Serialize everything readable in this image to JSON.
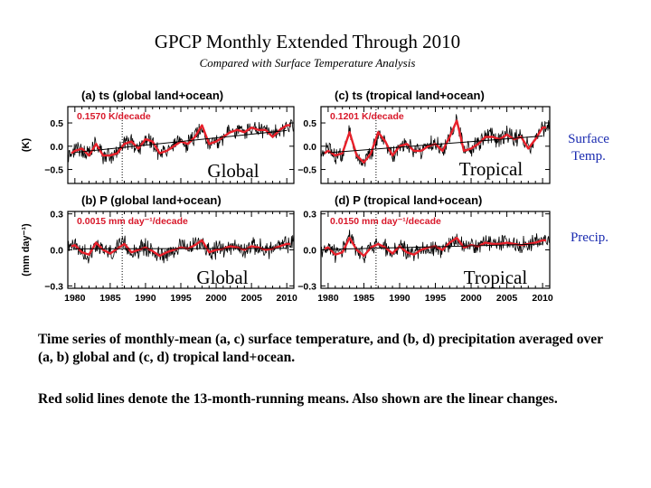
{
  "slide": {
    "title": "GPCP Monthly Extended Through 2010",
    "subtitle": "Compared with Surface Temperature Analysis",
    "side_labels": {
      "temp": "Surface Temp.",
      "precip": "Precip."
    },
    "captions": [
      "Time series of monthly-mean (a, c) surface temperature, and (b, d) precipitation averaged over (a, b) global and (c, d) tropical land+ocean.",
      "Red solid lines denote the 13-month-running means. Also shown are the linear changes."
    ]
  },
  "colors": {
    "trend_text": "#d8182a",
    "smooth_line": "#e8202a",
    "raw_line": "#000000",
    "side_label": "#1a2bb0",
    "dotted_marker": "#000000"
  },
  "chart_data": [
    {
      "id": "a",
      "type": "line",
      "panel_title": "(a)  ts  (global land+ocean)",
      "trend_label": "0.1570  K/decade",
      "overlay_label": "Global",
      "ylabel": "(K)",
      "yticks": [
        "0.5",
        "0.0",
        "−0.5"
      ],
      "ytick_values": [
        0.5,
        0.0,
        -0.5
      ],
      "ylim": [
        -0.8,
        0.85
      ],
      "xlim": [
        1979,
        2011
      ],
      "dotted_marker_year": 1986.7,
      "trend_per_year": 0.0157,
      "series_yearly": {
        "x": [
          1979,
          1980,
          1981,
          1982,
          1983,
          1984,
          1985,
          1986,
          1987,
          1988,
          1989,
          1990,
          1991,
          1992,
          1993,
          1994,
          1995,
          1996,
          1997,
          1998,
          1999,
          2000,
          2001,
          2002,
          2003,
          2004,
          2005,
          2006,
          2007,
          2008,
          2009,
          2010
        ],
        "y": [
          -0.2,
          -0.1,
          -0.05,
          -0.2,
          0.05,
          -0.2,
          -0.2,
          -0.15,
          0.05,
          0.1,
          -0.05,
          0.15,
          0.1,
          -0.15,
          -0.1,
          0.0,
          0.1,
          0.05,
          0.2,
          0.45,
          0.05,
          0.1,
          0.2,
          0.3,
          0.35,
          0.3,
          0.4,
          0.35,
          0.35,
          0.2,
          0.35,
          0.45
        ]
      }
    },
    {
      "id": "b",
      "type": "line",
      "panel_title": "(b)  P  (global land+ocean)",
      "trend_label": "0.0015  mm day⁻¹/decade",
      "overlay_label": "Global",
      "ylabel": "(mm day⁻¹)",
      "yticks": [
        "0.3",
        "0.0",
        "−0.3"
      ],
      "ytick_values": [
        0.3,
        0.0,
        -0.3
      ],
      "ylim": [
        -0.32,
        0.32
      ],
      "xlim": [
        1979,
        2011
      ],
      "dotted_marker_year": 1986.7,
      "trend_per_year": 0.00015,
      "series_yearly": {
        "x": [
          1979,
          1980,
          1981,
          1982,
          1983,
          1984,
          1985,
          1986,
          1987,
          1988,
          1989,
          1990,
          1991,
          1992,
          1993,
          1994,
          1995,
          1996,
          1997,
          1998,
          1999,
          2000,
          2001,
          2002,
          2003,
          2004,
          2005,
          2006,
          2007,
          2008,
          2009,
          2010
        ],
        "y": [
          0.02,
          0.04,
          -0.02,
          -0.04,
          0.06,
          0.0,
          -0.03,
          0.01,
          0.05,
          -0.02,
          0.0,
          0.02,
          -0.01,
          -0.05,
          -0.02,
          0.0,
          0.02,
          0.01,
          0.04,
          0.08,
          -0.02,
          0.0,
          0.01,
          0.03,
          0.02,
          0.0,
          0.03,
          0.02,
          0.0,
          0.01,
          0.03,
          0.05
        ]
      },
      "x_tick_labels": [
        "1980",
        "1985",
        "1990",
        "1995",
        "2000",
        "2005",
        "2010"
      ],
      "x_tick_values": [
        1980,
        1985,
        1990,
        1995,
        2000,
        2005,
        2010
      ]
    },
    {
      "id": "c",
      "type": "line",
      "panel_title": "(c)  ts  (tropical land+ocean)",
      "trend_label": "0.1201  K/decade",
      "overlay_label": "Tropical",
      "ylabel": "",
      "yticks": [
        "0.5",
        "0.0",
        "−0.5"
      ],
      "ytick_values": [
        0.5,
        0.0,
        -0.5
      ],
      "ylim": [
        -0.8,
        0.85
      ],
      "xlim": [
        1979,
        2011
      ],
      "dotted_marker_year": 1986.7,
      "trend_per_year": 0.012,
      "series_yearly": {
        "x": [
          1979,
          1980,
          1981,
          1982,
          1983,
          1984,
          1985,
          1986,
          1987,
          1988,
          1989,
          1990,
          1991,
          1992,
          1993,
          1994,
          1995,
          1996,
          1997,
          1998,
          1999,
          2000,
          2001,
          2002,
          2003,
          2004,
          2005,
          2006,
          2007,
          2008,
          2009,
          2010
        ],
        "y": [
          -0.2,
          -0.1,
          -0.2,
          -0.15,
          0.3,
          -0.2,
          -0.35,
          -0.15,
          0.3,
          0.1,
          -0.2,
          0.0,
          0.05,
          -0.1,
          -0.1,
          0.0,
          0.05,
          -0.1,
          0.2,
          0.55,
          -0.1,
          -0.05,
          0.05,
          0.2,
          0.2,
          0.15,
          0.25,
          0.15,
          0.2,
          -0.05,
          0.15,
          0.4
        ]
      }
    },
    {
      "id": "d",
      "type": "line",
      "panel_title": "(d)  P  (tropical land+ocean)",
      "trend_label": "0.0150  mm day⁻¹/decade",
      "overlay_label": "Tropical",
      "ylabel": "",
      "yticks": [
        "0.3",
        "0.0",
        "−0.3"
      ],
      "ytick_values": [
        0.3,
        0.0,
        -0.3
      ],
      "ylim": [
        -0.32,
        0.32
      ],
      "xlim": [
        1979,
        2011
      ],
      "dotted_marker_year": 1986.7,
      "trend_per_year": 0.0015,
      "series_yearly": {
        "x": [
          1979,
          1980,
          1981,
          1982,
          1983,
          1984,
          1985,
          1986,
          1987,
          1988,
          1989,
          1990,
          1991,
          1992,
          1993,
          1994,
          1995,
          1996,
          1997,
          1998,
          1999,
          2000,
          2001,
          2002,
          2003,
          2004,
          2005,
          2006,
          2007,
          2008,
          2009,
          2010
        ],
        "y": [
          0.0,
          0.02,
          -0.04,
          -0.02,
          0.1,
          0.0,
          -0.05,
          0.02,
          0.05,
          0.02,
          -0.03,
          0.03,
          -0.02,
          -0.04,
          0.0,
          0.02,
          0.03,
          0.0,
          0.06,
          0.1,
          0.02,
          0.04,
          0.03,
          0.06,
          0.05,
          0.05,
          0.06,
          0.05,
          0.04,
          0.05,
          0.06,
          0.08
        ]
      },
      "x_tick_labels": [
        "1980",
        "1985",
        "1990",
        "1995",
        "2000",
        "2005",
        "2010"
      ],
      "x_tick_values": [
        1980,
        1985,
        1990,
        1995,
        2000,
        2005,
        2010
      ]
    }
  ]
}
